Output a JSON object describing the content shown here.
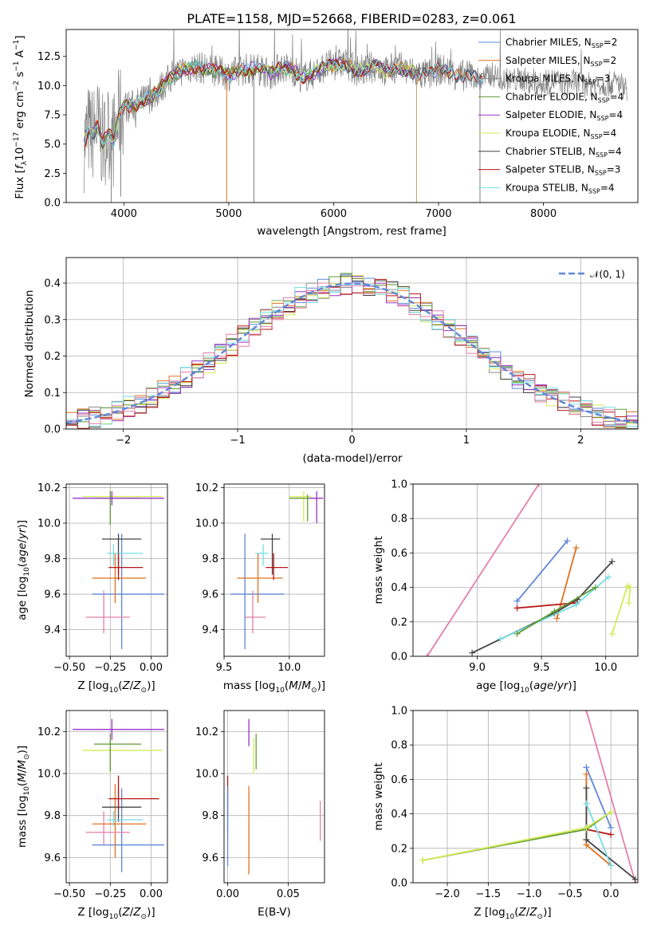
{
  "colors": {
    "cmiles": "#5f86d8",
    "smiles": "#e0701e",
    "kmiles": "#8a8a8a",
    "celodie": "#5f9b34",
    "selodie": "#9a32c8",
    "kelodie": "#d4ea58",
    "cstelib": "#444444",
    "sstelib": "#b81414",
    "kstelib": "#76dde6",
    "pink": "#e37fa9",
    "gray": "#808080",
    "grid": "#b0b0b0",
    "normal": "#5f86d8"
  },
  "chart_data": [
    {
      "id": "spectrum",
      "type": "line",
      "title": "PLATE=1158, MJD=52668, FIBERID=0283, z=0.061",
      "xlabel": "wavelength [Angstrom, rest frame]",
      "ylabel": "Flux [f$_\\lambda$10$^{-17}$ erg cm$^{-2}$ s$^{-1}$ A$^{-1}$]",
      "xlim": [
        3450,
        8900
      ],
      "ylim": [
        0,
        14.8
      ],
      "xticks": [
        "4000",
        "5000",
        "6000",
        "7000",
        "8000"
      ],
      "yticks": [
        "0.0",
        "2.5",
        "5.0",
        "7.5",
        "10.0",
        "12.5"
      ],
      "grid": false,
      "legend_position": "upper-right",
      "x": [
        3620,
        3660,
        3700,
        3750,
        3800,
        3850,
        3900,
        3950,
        4000,
        4100,
        4200,
        4300,
        4400,
        4500,
        4600,
        4700,
        4800,
        4900,
        5000,
        5100,
        5200,
        5300,
        5400,
        5500,
        5600,
        5700,
        5800,
        5900,
        6000,
        6100,
        6200,
        6300,
        6400,
        6500,
        6600,
        6700,
        6800,
        6900,
        7000,
        7100,
        7200,
        7300,
        7400,
        7500,
        7600,
        7700,
        7800,
        7900,
        8000,
        8100,
        8200,
        8300,
        8400,
        8500,
        8600,
        8700,
        8800
      ],
      "y": [
        5.0,
        6.1,
        5.8,
        6.6,
        5.0,
        6.2,
        5.2,
        7.3,
        8.2,
        8.3,
        8.8,
        9.3,
        10.3,
        11.0,
        11.5,
        11.6,
        11.4,
        11.2,
        10.9,
        11.3,
        11.5,
        11.4,
        11.0,
        11.6,
        11.4,
        10.7,
        11.0,
        11.5,
        11.8,
        11.9,
        11.4,
        11.3,
        11.7,
        11.2,
        11.6,
        11.3,
        11.0,
        10.9,
        11.4,
        11.2,
        10.8,
        11.0,
        10.4,
        11.0,
        10.6,
        10.4,
        10.6,
        10.2,
        10.0,
        10.5,
        10.1,
        10.4,
        10.0,
        10.2,
        10.1,
        10.3,
        9.8
      ],
      "legend": [
        {
          "label": "Chabrier MILES, N",
          "sub": "SSP",
          "n": "=2"
        },
        {
          "label": "Salpeter MILES, N",
          "sub": "SSP",
          "n": "=2"
        },
        {
          "label": "Kroupa MILES, N",
          "sub": "SSP",
          "n": "=3"
        },
        {
          "label": "Chabrier ELODIE, N",
          "sub": "SSP",
          "n": "=4"
        },
        {
          "label": "Salpeter ELODIE, N",
          "sub": "SSP",
          "n": "=4"
        },
        {
          "label": "Kroupa ELODIE, N",
          "sub": "SSP",
          "n": "=4"
        },
        {
          "label": "Chabrier STELIB, N",
          "sub": "SSP",
          "n": "=4"
        },
        {
          "label": "Salpeter STELIB, N",
          "sub": "SSP",
          "n": "=3"
        },
        {
          "label": "Kroupa STELIB, N",
          "sub": "SSP",
          "n": "=4"
        }
      ]
    },
    {
      "id": "residuals",
      "type": "line",
      "xlabel": "(data-model)/error",
      "ylabel": "Normed distribution",
      "xlim": [
        -2.5,
        2.5
      ],
      "ylim": [
        0,
        0.47
      ],
      "xticks": [
        "−2",
        "−1",
        "0",
        "1",
        "2"
      ],
      "yticks": [
        "0.0",
        "0.1",
        "0.2",
        "0.3",
        "0.4"
      ],
      "grid": true,
      "legend_position": "upper-right",
      "legend_label": "𝒩(0, 1)",
      "bin_width": 0.1,
      "bins_start": -2.5,
      "n_bins": 50
    },
    {
      "id": "age-vs-Z",
      "type": "scatter",
      "xlabel": "Z [log",
      "xlabel_sub": "10",
      "xlabel_tail": "(Z/Z",
      "ylabel": "age  [log10(age/yr)]",
      "xlim": [
        -0.52,
        0.1
      ],
      "ylim": [
        9.25,
        10.22
      ],
      "xticks": [
        "−0.50",
        "−0.25",
        "0.00"
      ],
      "yticks": [
        "9.4",
        "9.6",
        "9.8",
        "10.0",
        "10.2"
      ],
      "points": [
        {
          "c": "cmiles",
          "x": -0.18,
          "xe": [
            -0.36,
            0.08
          ],
          "y": 9.6,
          "ye": [
            9.29,
            9.94
          ]
        },
        {
          "c": "smiles",
          "x": -0.22,
          "xe": [
            -0.36,
            -0.03
          ],
          "y": 9.69,
          "ye": [
            9.55,
            9.83
          ]
        },
        {
          "c": "pink",
          "x": -0.29,
          "xe": [
            -0.4,
            -0.13
          ],
          "y": 9.47,
          "ye": [
            9.38,
            9.62
          ]
        },
        {
          "c": "cstelib",
          "x": -0.2,
          "xe": [
            -0.3,
            -0.06
          ],
          "y": 9.91,
          "ye": [
            9.71,
            9.94
          ]
        },
        {
          "c": "kstelib",
          "x": -0.23,
          "xe": [
            -0.27,
            -0.05
          ],
          "y": 9.83,
          "ye": [
            9.76,
            9.88
          ]
        },
        {
          "c": "sstelib",
          "x": -0.2,
          "xe": [
            -0.26,
            -0.05
          ],
          "y": 9.75,
          "ye": [
            9.68,
            9.83
          ]
        },
        {
          "c": "kelodie",
          "x": -0.25,
          "xe": [
            -0.42,
            0.07
          ],
          "y": 10.15,
          "ye": [
            10.1,
            10.19
          ]
        },
        {
          "c": "celodie",
          "x": -0.25,
          "xe": [
            -0.35,
            -0.06
          ],
          "y": 10.14,
          "ye": [
            9.99,
            10.18
          ]
        },
        {
          "c": "selodie",
          "x": -0.24,
          "xe": [
            -0.48,
            0.08
          ],
          "y": 10.14,
          "ye": [
            10.1,
            10.18
          ]
        }
      ]
    },
    {
      "id": "age-vs-mass",
      "type": "scatter",
      "xlabel": "mass [log10(M/M⊙)]",
      "xlim": [
        9.5,
        10.27
      ],
      "ylim": [
        9.25,
        10.22
      ],
      "xticks": [
        "9.5",
        "10.0"
      ],
      "yticks": [
        "9.4",
        "9.6",
        "9.8",
        "10.0",
        "10.2"
      ],
      "points": [
        {
          "c": "cmiles",
          "x": 9.66,
          "xe": [
            9.55,
            9.96
          ],
          "y": 9.6,
          "ye": [
            9.29,
            9.94
          ]
        },
        {
          "c": "smiles",
          "x": 9.76,
          "xe": [
            9.6,
            9.95
          ],
          "y": 9.69,
          "ye": [
            9.55,
            9.83
          ]
        },
        {
          "c": "pink",
          "x": 9.72,
          "xe": [
            9.66,
            9.82
          ],
          "y": 9.47,
          "ye": [
            9.38,
            9.62
          ]
        },
        {
          "c": "cstelib",
          "x": 9.87,
          "xe": [
            9.78,
            9.93
          ],
          "y": 9.91,
          "ye": [
            9.71,
            9.94
          ]
        },
        {
          "c": "kstelib",
          "x": 9.8,
          "xe": [
            9.74,
            9.84
          ],
          "y": 9.83,
          "ye": [
            9.76,
            9.88
          ]
        },
        {
          "c": "sstelib",
          "x": 9.88,
          "xe": [
            9.82,
            9.99
          ],
          "y": 9.75,
          "ye": [
            9.68,
            9.83
          ]
        },
        {
          "c": "kelodie",
          "x": 10.11,
          "xe": [
            10.0,
            10.17
          ],
          "y": 10.15,
          "ye": [
            10.01,
            10.18
          ]
        },
        {
          "c": "celodie",
          "x": 10.14,
          "xe": [
            10.0,
            10.19
          ],
          "y": 10.14,
          "ye": [
            10.01,
            10.16
          ]
        },
        {
          "c": "selodie",
          "x": 10.21,
          "xe": [
            10.15,
            10.26
          ],
          "y": 10.14,
          "ye": [
            10.0,
            10.18
          ]
        }
      ]
    },
    {
      "id": "weight-vs-age",
      "type": "line",
      "xlabel": "age  [log10(age/yr)]",
      "ylabel": "mass weight",
      "xlim": [
        8.5,
        10.25
      ],
      "ylim": [
        0,
        1
      ],
      "xticks": [
        "9.0",
        "9.5",
        "10.0"
      ],
      "yticks": [
        "0.0",
        "0.2",
        "0.4",
        "0.6",
        "0.8",
        "1.0"
      ],
      "grid": true,
      "series": [
        {
          "c": "pink",
          "x": [
            8.61,
            9.48
          ],
          "y": [
            0.0,
            1.0
          ]
        },
        {
          "c": "cmiles",
          "x": [
            9.31,
            9.7
          ],
          "y": [
            0.32,
            0.67
          ]
        },
        {
          "c": "smiles",
          "x": [
            9.62,
            9.77
          ],
          "y": [
            0.22,
            0.63
          ]
        },
        {
          "c": "cstelib",
          "x": [
            8.96,
            9.6,
            9.78,
            10.05
          ],
          "y": [
            0.02,
            0.25,
            0.33,
            0.55
          ]
        },
        {
          "c": "sstelib",
          "x": [
            9.31,
            9.77
          ],
          "y": [
            0.28,
            0.31
          ]
        },
        {
          "c": "kstelib",
          "x": [
            9.18,
            9.77,
            10.02
          ],
          "y": [
            0.1,
            0.3,
            0.46
          ]
        },
        {
          "c": "celodie",
          "x": [
            9.31,
            9.6,
            9.92
          ],
          "y": [
            0.13,
            0.26,
            0.4
          ]
        },
        {
          "c": "kelodie",
          "x": [
            10.05,
            10.17,
            10.19,
            10.18
          ],
          "y": [
            0.13,
            0.41,
            0.4,
            0.31
          ]
        }
      ]
    },
    {
      "id": "mass-vs-Z",
      "type": "scatter",
      "xlabel": "Z [log10(Z/Z⊙)]",
      "ylabel": "mass [log10(M/M⊙)]",
      "xlim": [
        -0.52,
        0.1
      ],
      "ylim": [
        9.48,
        10.3
      ],
      "xticks": [
        "−0.50",
        "−0.25",
        "0.00"
      ],
      "yticks": [
        "9.6",
        "9.8",
        "10.0",
        "10.2"
      ],
      "points": [
        {
          "c": "cmiles",
          "x": -0.18,
          "xe": [
            -0.36,
            0.08
          ],
          "y": 9.66,
          "ye": [
            9.53,
            9.93
          ]
        },
        {
          "c": "smiles",
          "x": -0.22,
          "xe": [
            -0.36,
            -0.03
          ],
          "y": 9.76,
          "ye": [
            9.6,
            9.95
          ]
        },
        {
          "c": "pink",
          "x": -0.29,
          "xe": [
            -0.4,
            -0.13
          ],
          "y": 9.72,
          "ye": [
            9.66,
            9.82
          ]
        },
        {
          "c": "cstelib",
          "x": -0.2,
          "xe": [
            -0.3,
            -0.06
          ],
          "y": 9.84,
          "ye": [
            9.77,
            9.93
          ]
        },
        {
          "c": "kstelib",
          "x": -0.23,
          "xe": [
            -0.27,
            -0.05
          ],
          "y": 9.78,
          "ye": [
            9.75,
            9.82
          ]
        },
        {
          "c": "sstelib",
          "x": -0.2,
          "xe": [
            -0.26,
            0.05
          ],
          "y": 9.88,
          "ye": [
            9.83,
            9.99
          ]
        },
        {
          "c": "kelodie",
          "x": -0.25,
          "xe": [
            -0.42,
            0.07
          ],
          "y": 10.11,
          "ye": [
            10.0,
            10.16
          ]
        },
        {
          "c": "celodie",
          "x": -0.25,
          "xe": [
            -0.35,
            -0.06
          ],
          "y": 10.14,
          "ye": [
            10.01,
            10.19
          ]
        },
        {
          "c": "selodie",
          "x": -0.24,
          "xe": [
            -0.48,
            0.08
          ],
          "y": 10.21,
          "ye": [
            10.16,
            10.26
          ]
        }
      ]
    },
    {
      "id": "mass-vs-ebv",
      "type": "scatter",
      "xlabel": "E(B-V)",
      "xlim": [
        -0.003,
        0.08
      ],
      "ylim": [
        9.48,
        10.3
      ],
      "xticks": [
        "0.00",
        "0.05"
      ],
      "yticks": [
        "9.6",
        "9.8",
        "10.0",
        "10.2"
      ],
      "points": [
        {
          "c": "sstelib",
          "x": 0.0,
          "y": 9.88,
          "ye": [
            9.8,
            9.99
          ]
        },
        {
          "c": "kstelib",
          "x": 0.0,
          "y": 9.78,
          "ye": [
            9.71,
            9.9
          ]
        },
        {
          "c": "cmiles",
          "x": 0.0,
          "y": 9.66,
          "ye": [
            9.56,
            9.94
          ]
        },
        {
          "c": "smiles",
          "x": 0.0175,
          "y": 9.76,
          "ye": [
            9.52,
            9.94
          ]
        },
        {
          "c": "selodie",
          "x": 0.0175,
          "y": 10.21,
          "ye": [
            10.13,
            10.26
          ]
        },
        {
          "c": "kelodie",
          "x": 0.0215,
          "y": 10.11,
          "ye": [
            10.0,
            10.17
          ]
        },
        {
          "c": "celodie",
          "x": 0.0235,
          "y": 10.14,
          "ye": [
            10.02,
            10.19
          ]
        },
        {
          "c": "pink",
          "x": 0.0765,
          "y": 9.72,
          "ye": [
            9.68,
            9.87
          ]
        }
      ]
    },
    {
      "id": "weight-vs-Z",
      "type": "line",
      "xlabel": "Z [log10(Z/Z⊙)]",
      "ylabel": "mass weight",
      "xlim": [
        -2.42,
        0.33
      ],
      "ylim": [
        0,
        1
      ],
      "xticks": [
        "−2.0",
        "−1.5",
        "−1.0",
        "−0.5",
        "0.0"
      ],
      "yticks": [
        "0.0",
        "0.2",
        "0.4",
        "0.6",
        "0.8",
        "1.0"
      ],
      "grid": true,
      "series": [
        {
          "c": "pink",
          "x": [
            -0.3,
            0.3
          ],
          "y": [
            1.0,
            0.0
          ]
        },
        {
          "c": "cmiles",
          "x": [
            -0.3,
            0.0
          ],
          "y": [
            0.67,
            0.32
          ]
        },
        {
          "c": "smiles",
          "x": [
            -0.3,
            -0.3,
            0.0
          ],
          "y": [
            0.63,
            0.22,
            0.1
          ]
        },
        {
          "c": "cstelib",
          "x": [
            -0.3,
            -0.3,
            0.3
          ],
          "y": [
            0.55,
            0.25,
            0.02
          ]
        },
        {
          "c": "sstelib",
          "x": [
            -0.3,
            0.0
          ],
          "y": [
            0.31,
            0.28
          ]
        },
        {
          "c": "kstelib",
          "x": [
            -0.3,
            0.0
          ],
          "y": [
            0.46,
            0.1
          ]
        },
        {
          "c": "celodie",
          "x": [
            -2.3,
            -0.3,
            0.0
          ],
          "y": [
            0.13,
            0.31,
            0.41
          ]
        },
        {
          "c": "kelodie",
          "x": [
            -2.3,
            -0.3,
            0.0
          ],
          "y": [
            0.13,
            0.32,
            0.41
          ]
        }
      ]
    }
  ]
}
